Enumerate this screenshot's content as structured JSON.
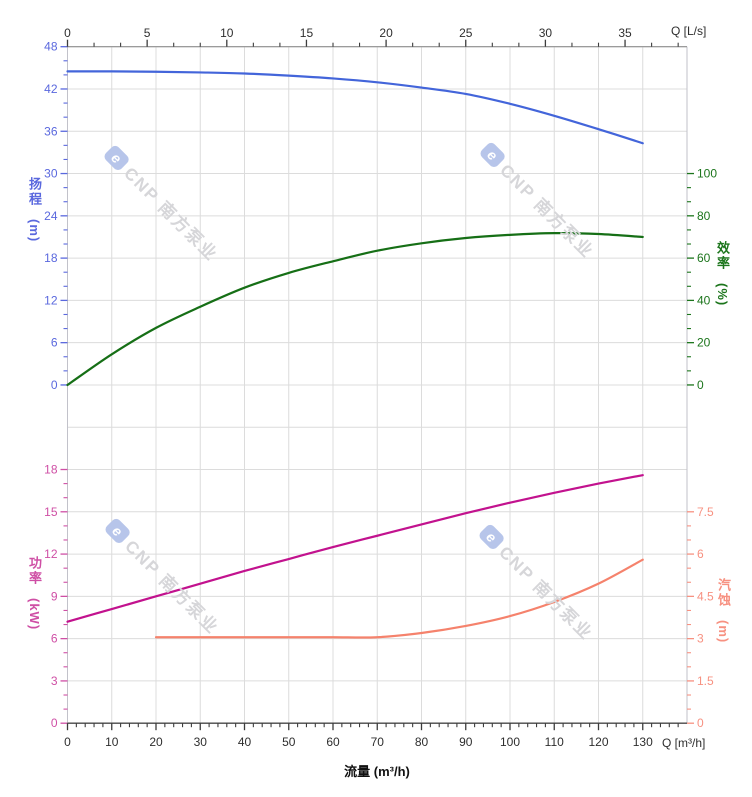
{
  "figure": {
    "watermark": {
      "logo_char": "e",
      "brand": "CNP 南方泵业"
    }
  },
  "chart_data": [
    {
      "type": "line",
      "position": "top",
      "title": "",
      "x_axis": {
        "side": "top",
        "label": "Q [L/s]",
        "ticks": [
          0,
          5,
          10,
          15,
          20,
          25,
          30,
          35
        ],
        "minor_step": 1.6667,
        "to_m3h": 3.6,
        "xlim_m3h": [
          0,
          140
        ]
      },
      "left_axis": {
        "title": "扬程",
        "unit": "(m)",
        "color": "#5a68de",
        "min": 0,
        "max": 48,
        "major_ticks": [
          48,
          42,
          36,
          30,
          24,
          18,
          12,
          6,
          0
        ],
        "minor_step": 2
      },
      "right_axis": {
        "title": "效率",
        "unit": "(%)",
        "color": "#1c751c",
        "min": 0,
        "max": 100,
        "major_ticks": [
          100,
          80,
          60,
          40,
          20,
          0
        ],
        "minor_step": 6.6667
      },
      "series": [
        {
          "name": "head",
          "axis": "left",
          "color": "#4365da",
          "points": [
            [
              0,
              44.5
            ],
            [
              10,
              44.5
            ],
            [
              20,
              44.45
            ],
            [
              30,
              44.35
            ],
            [
              40,
              44.2
            ],
            [
              50,
              43.9
            ],
            [
              60,
              43.5
            ],
            [
              70,
              42.95
            ],
            [
              80,
              42.2
            ],
            [
              90,
              41.3
            ],
            [
              100,
              39.9
            ],
            [
              110,
              38.2
            ],
            [
              120,
              36.3
            ],
            [
              130,
              34.3
            ]
          ]
        },
        {
          "name": "efficiency",
          "axis": "right",
          "color": "#166f16",
          "points": [
            [
              0,
              0
            ],
            [
              10,
              14.5
            ],
            [
              20,
              27
            ],
            [
              30,
              37
            ],
            [
              40,
              46
            ],
            [
              50,
              53
            ],
            [
              60,
              58.5
            ],
            [
              70,
              63.5
            ],
            [
              80,
              67
            ],
            [
              90,
              69.5
            ],
            [
              100,
              71
            ],
            [
              110,
              71.8
            ],
            [
              120,
              71.4
            ],
            [
              130,
              70
            ]
          ]
        }
      ]
    },
    {
      "type": "line",
      "position": "bottom",
      "title": "",
      "x_axis": {
        "side": "bottom",
        "label": "Q [m³/h]",
        "xlabel": "流量 (m³/h)",
        "ticks": [
          0,
          10,
          20,
          30,
          40,
          50,
          60,
          70,
          80,
          90,
          100,
          110,
          120,
          130
        ],
        "minor_step": 2,
        "xlim_m3h": [
          0,
          140
        ]
      },
      "left_axis": {
        "title": "功率",
        "unit": "(kW)",
        "color": "#cf4fa5",
        "min": 0,
        "max": 18,
        "major_ticks": [
          18,
          15,
          12,
          9,
          6,
          3,
          0
        ],
        "minor_step": 1
      },
      "right_axis": {
        "title": "汽蚀",
        "unit": "(m)",
        "color": "#f79181",
        "min": 0,
        "max": 7.5,
        "major_ticks": [
          7.5,
          6,
          4.5,
          3,
          1.5,
          0
        ],
        "minor_step": 0.5
      },
      "series": [
        {
          "name": "power",
          "axis": "left",
          "color": "#c2128e",
          "points": [
            [
              0,
              7.2
            ],
            [
              10,
              8.1
            ],
            [
              20,
              9.0
            ],
            [
              30,
              9.9
            ],
            [
              40,
              10.8
            ],
            [
              50,
              11.65
            ],
            [
              60,
              12.5
            ],
            [
              70,
              13.3
            ],
            [
              80,
              14.1
            ],
            [
              90,
              14.9
            ],
            [
              100,
              15.65
            ],
            [
              110,
              16.35
            ],
            [
              120,
              17.0
            ],
            [
              130,
              17.6
            ]
          ]
        },
        {
          "name": "npsh",
          "axis": "right",
          "color": "#f5826c",
          "points": [
            [
              20,
              3.05
            ],
            [
              30,
              3.05
            ],
            [
              40,
              3.05
            ],
            [
              50,
              3.05
            ],
            [
              60,
              3.05
            ],
            [
              70,
              3.05
            ],
            [
              80,
              3.2
            ],
            [
              90,
              3.45
            ],
            [
              100,
              3.8
            ],
            [
              110,
              4.3
            ],
            [
              120,
              4.95
            ],
            [
              130,
              5.8
            ]
          ]
        }
      ]
    }
  ]
}
